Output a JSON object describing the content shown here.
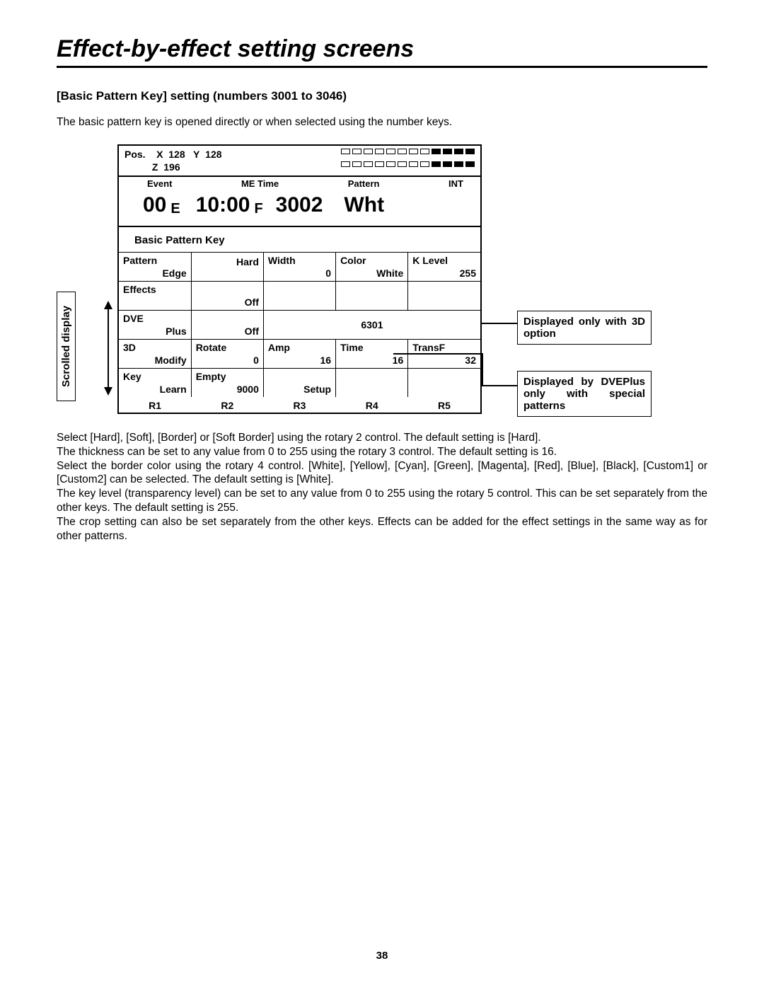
{
  "page": {
    "title": "Effect-by-effect setting screens",
    "section": "[Basic Pattern Key] setting (numbers 3001 to 3046)",
    "intro": "The basic pattern key is opened directly or when selected using the number keys.",
    "number": "38"
  },
  "panel": {
    "pos_label": "Pos.",
    "x_label": "X",
    "x_val": "128",
    "y_label": "Y",
    "y_val": "128",
    "z_label": "Z",
    "z_val": "196",
    "eventLabel": "Event",
    "event": "00",
    "eventSuf": "E",
    "meLabel": "ME Time",
    "me": "10:00",
    "meSuf": "F",
    "patternLabel": "Pattern",
    "pattern": "3002",
    "intLabel": "INT",
    "int": "Wht",
    "bkpLabel": "Basic Pattern Key",
    "meter_fill_1": [
      false,
      false,
      false,
      false,
      false,
      false,
      false,
      false,
      true,
      true,
      true,
      true
    ],
    "meter_fill_2": [
      false,
      false,
      false,
      false,
      false,
      false,
      false,
      false,
      true,
      true,
      true,
      true
    ],
    "rows": [
      {
        "c1t": "Pattern",
        "c1b": "Edge",
        "c2t": "",
        "c2b": "Hard",
        "c3t": "Width",
        "c3b": "0",
        "c4t": "Color",
        "c4b": "White",
        "c5t": "K Level",
        "c5b": "255"
      },
      {
        "c1t": "Effects",
        "c1b": "",
        "c2t": "",
        "c2b": "Off",
        "c3t": "",
        "c3b": "",
        "c4t": "",
        "c4b": "",
        "c5t": "",
        "c5b": ""
      },
      {
        "c1t": "DVE",
        "c1b": "Plus",
        "c2t": "",
        "c2b": "Off",
        "mergedText": "6301"
      },
      {
        "c1t": "3D",
        "c1b": "Modify",
        "c2t": "Rotate",
        "c2b": "0",
        "c3t": "Amp",
        "c3b": "16",
        "c4t": "Time",
        "c4b": "16",
        "c5t": "TransF",
        "c5b": "32"
      },
      {
        "c1t": "Key",
        "c1b": "Learn",
        "c2t": "Empty",
        "c2b": "9000",
        "c3t": "",
        "c3b": "Setup",
        "c4t": "",
        "c4b": "",
        "c5t": "",
        "c5b": ""
      }
    ],
    "r_labels": [
      "R1",
      "R2",
      "R3",
      "R4",
      "R5"
    ]
  },
  "annotations": {
    "scrolled": "Scrolled display",
    "callout1": "Displayed only with 3D option",
    "callout2": "Displayed by DVEPlus only with special patterns"
  },
  "body": [
    "Select [Hard], [Soft], [Border] or [Soft Border] using the rotary 2 control.  The default setting is [Hard].",
    "The thickness can be set to any value from 0 to 255 using the rotary 3 control.  The default setting is 16.",
    "Select the border color using the rotary 4 control.  [White], [Yellow], [Cyan], [Green], [Magenta], [Red], [Blue], [Black], [Custom1] or [Custom2] can be selected.  The default setting is [White].",
    "The key level (transparency level) can be set to any value from 0 to 255 using the rotary 5 control.  This can be set separately from the other keys.  The default setting is 255.",
    "The crop setting can also be set separately from the other keys.  Effects can be added for the effect settings in the same way as for other patterns."
  ]
}
